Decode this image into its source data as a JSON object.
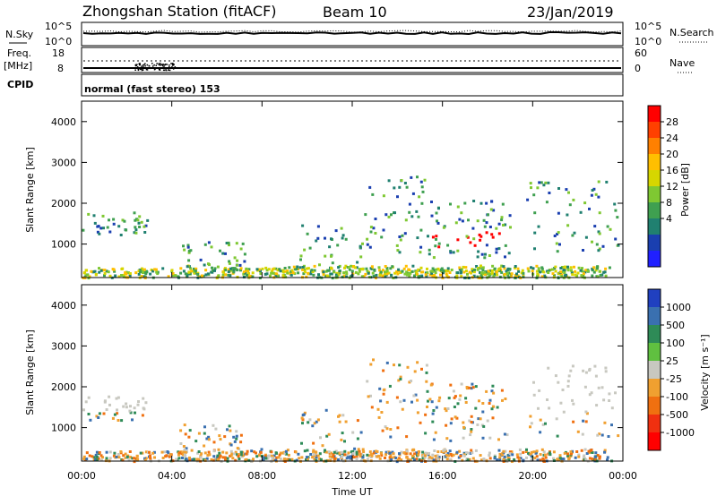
{
  "header": {
    "station": "Zhongshan Station (fitACF)",
    "beam": "Beam 10",
    "date": "23/Jan/2019"
  },
  "top_panels": {
    "nsky_label": "N.Sky",
    "nsky_ticks": [
      "10^5",
      "10^0"
    ],
    "nsearch_label": "N.Search",
    "nsearch_ticks": [
      "10^5",
      "10^0"
    ],
    "freq_label": "Freq.",
    "freq_unit": "[MHz]",
    "freq_ticks": [
      "18",
      "8"
    ],
    "nave_label": "Nave",
    "nave_ticks": [
      "60",
      "0"
    ],
    "cpid_label": "CPID",
    "cpid_text": "normal (fast stereo) 153"
  },
  "chart_data": [
    {
      "type": "heatmap",
      "panel": "power",
      "ylabel": "Slant Range [km]",
      "xlabel": "",
      "ylim": [
        180,
        4500
      ],
      "yticks": [
        "1000",
        "2000",
        "3000",
        "4000"
      ],
      "x_ticks": [
        "00:00",
        "04:00",
        "08:00",
        "12:00",
        "16:00",
        "20:00",
        "00:00"
      ],
      "colorbar": {
        "label": "Power [dB]",
        "ticks": [
          "28",
          "24",
          "20",
          "16",
          "12",
          "8",
          "4"
        ],
        "colors": [
          "#ff0000",
          "#ff4000",
          "#ff8000",
          "#ffbf00",
          "#d6d600",
          "#7fc832",
          "#3fa050",
          "#208070",
          "#1a3fb0",
          "#2020ff"
        ]
      }
    },
    {
      "type": "heatmap",
      "panel": "velocity",
      "ylabel": "Slant Range [km]",
      "xlabel": "Time UT",
      "ylim": [
        180,
        4500
      ],
      "yticks": [
        "1000",
        "2000",
        "3000",
        "4000"
      ],
      "x_ticks": [
        "00:00",
        "04:00",
        "08:00",
        "12:00",
        "16:00",
        "20:00",
        "00:00"
      ],
      "colorbar": {
        "label": "Velocity [m s⁻¹]",
        "ticks": [
          "1000",
          "500",
          "100",
          "25",
          "-25",
          "-100",
          "-500",
          "-1000"
        ],
        "colors": [
          "#2040c0",
          "#3a70b0",
          "#2e8b57",
          "#60c040",
          "#c8c8c0",
          "#f0a030",
          "#f07010",
          "#f03010",
          "#ff0000"
        ]
      }
    }
  ]
}
